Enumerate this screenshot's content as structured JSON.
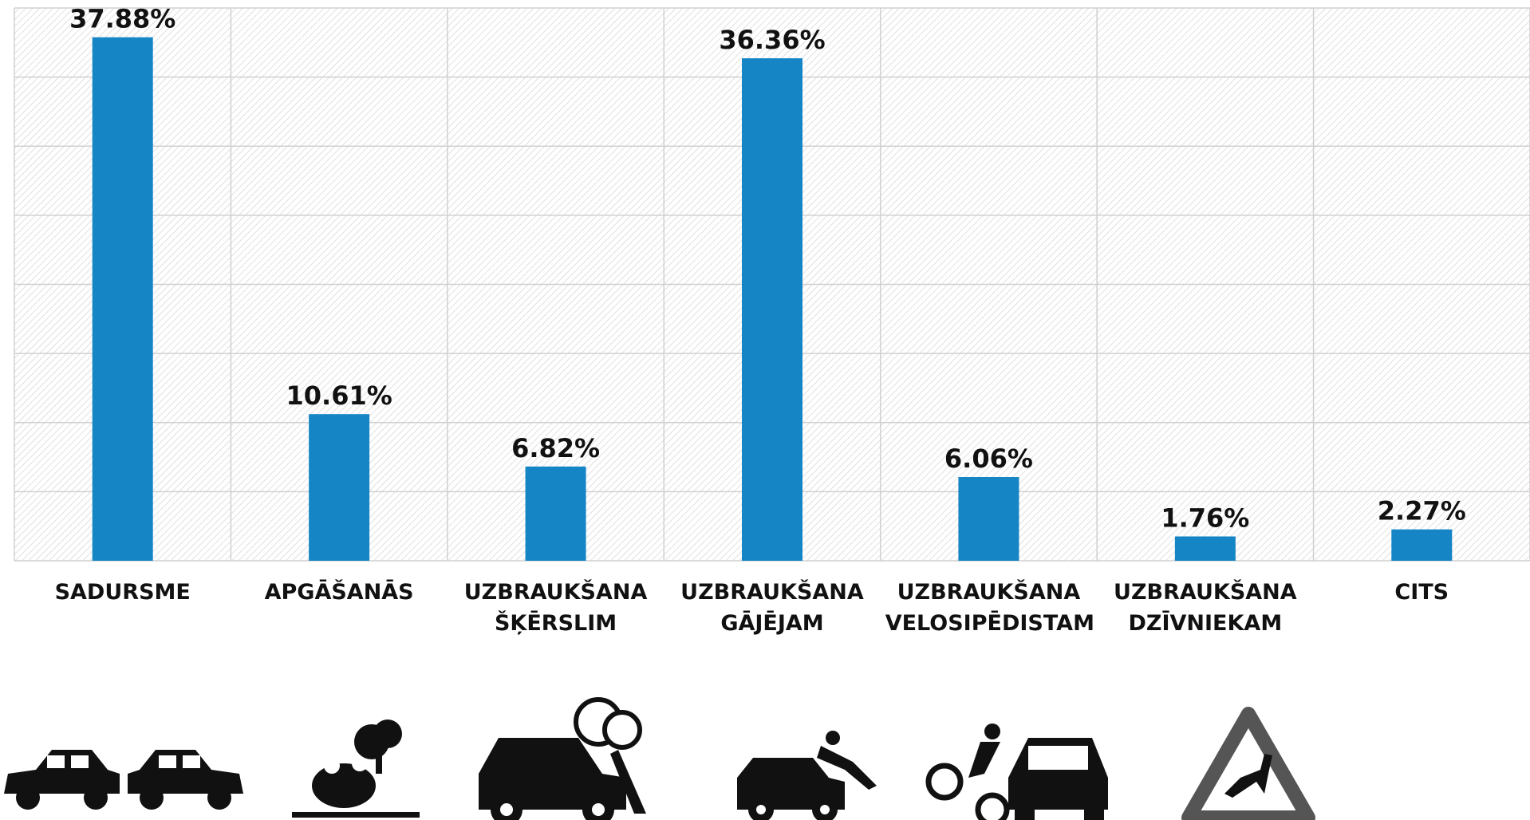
{
  "chart_data": {
    "type": "bar",
    "categories": [
      "SADURSME",
      "APGĀŠANĀS",
      "UZBRAUKŠANA ŠĶĒRSLIM",
      "UZBRAUKŠANA GĀJĒJAM",
      "UZBRAUKŠANA VELOSIPĒDISTAM",
      "UZBRAUKŠANA DZĪVNIEKAM",
      "CITS"
    ],
    "values": [
      37.88,
      10.61,
      6.82,
      36.36,
      6.06,
      1.76,
      2.27
    ],
    "value_labels": [
      "37.88%",
      "10.61%",
      "6.82%",
      "36.36%",
      "6.06%",
      "1.76%",
      "2.27%"
    ],
    "color": "#1585c5",
    "ylim": [
      0,
      40
    ],
    "yticks": [
      0,
      5,
      10,
      15,
      20,
      25,
      30,
      35,
      40
    ],
    "grid": true
  }
}
